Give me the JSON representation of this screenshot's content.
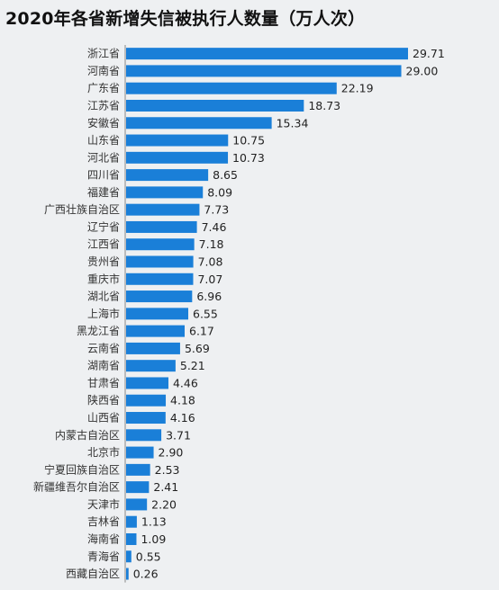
{
  "colors": {
    "bar": "#1a7fd8",
    "background": "#eef0f2",
    "axis": "#888888"
  },
  "chart_data": {
    "type": "bar",
    "orientation": "horizontal",
    "title": "2020年各省新增失信被执行人数量（万人次）",
    "xlabel": "",
    "ylabel": "",
    "xlim": [
      0,
      29.71
    ],
    "grid": false,
    "categories": [
      "浙江省",
      "河南省",
      "广东省",
      "江苏省",
      "安徽省",
      "山东省",
      "河北省",
      "四川省",
      "福建省",
      "广西壮族自治区",
      "辽宁省",
      "江西省",
      "贵州省",
      "重庆市",
      "湖北省",
      "上海市",
      "黑龙江省",
      "云南省",
      "湖南省",
      "甘肃省",
      "陕西省",
      "山西省",
      "内蒙古自治区",
      "北京市",
      "宁夏回族自治区",
      "新疆维吾尔自治区",
      "天津市",
      "吉林省",
      "海南省",
      "青海省",
      "西藏自治区"
    ],
    "values": [
      29.71,
      29.0,
      22.19,
      18.73,
      15.34,
      10.75,
      10.73,
      8.65,
      8.09,
      7.73,
      7.46,
      7.18,
      7.08,
      7.07,
      6.96,
      6.55,
      6.17,
      5.69,
      5.21,
      4.46,
      4.18,
      4.16,
      3.71,
      2.9,
      2.53,
      2.41,
      2.2,
      1.13,
      1.09,
      0.55,
      0.26
    ],
    "value_labels": [
      "29.71",
      "29.00",
      "22.19",
      "18.73",
      "15.34",
      "10.75",
      "10.73",
      "8.65",
      "8.09",
      "7.73",
      "7.46",
      "7.18",
      "7.08",
      "7.07",
      "6.96",
      "6.55",
      "6.17",
      "5.69",
      "5.21",
      "4.46",
      "4.18",
      "4.16",
      "3.71",
      "2.90",
      "2.53",
      "2.41",
      "2.20",
      "1.13",
      "1.09",
      "0.55",
      "0.26"
    ]
  }
}
